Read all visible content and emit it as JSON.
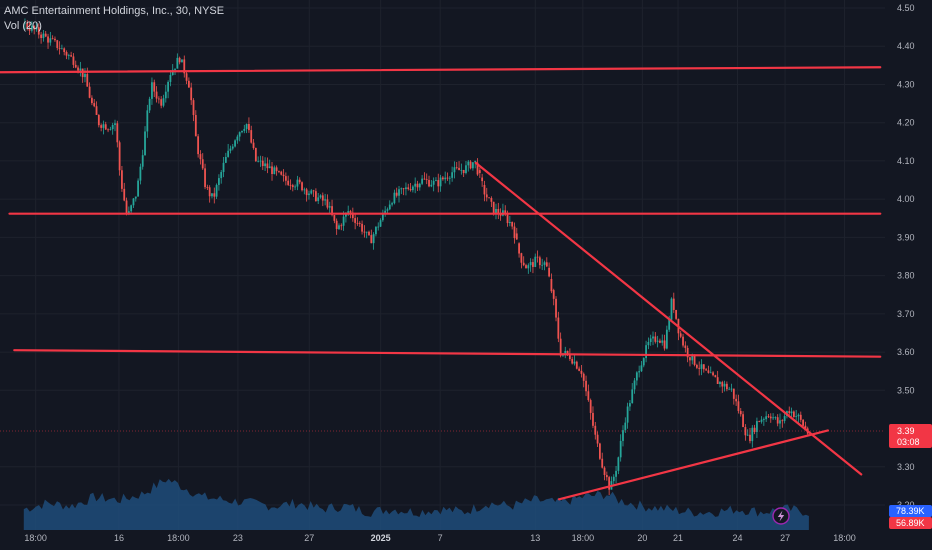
{
  "header": {
    "title": "AMC Entertainment Holdings, Inc., 30, NYSE",
    "volume_label": "Vol (20)"
  },
  "colors": {
    "background": "#131722",
    "up": "#26a69a",
    "down": "#ef5350",
    "trendline": "#f23645",
    "volume_area": "#1e4c7a",
    "price_label": "#f23645",
    "vol_label_up": "#2962ff",
    "vol_label_down": "#f23645"
  },
  "chart_data": {
    "type": "candlestick",
    "title": "AMC Entertainment Holdings, Inc., 30, NYSE",
    "ylim": [
      3.2,
      4.5
    ],
    "y_ticks": [
      "4.50",
      "4.40",
      "4.30",
      "4.20",
      "4.10",
      "4.00",
      "3.90",
      "3.80",
      "3.70",
      "3.60",
      "3.50",
      "3.30",
      "3.20"
    ],
    "x_ticks": [
      {
        "label": "18:00",
        "x": 0.5
      },
      {
        "label": "16",
        "x": 4
      },
      {
        "label": "18:00",
        "x": 6.5
      },
      {
        "label": "23",
        "x": 9
      },
      {
        "label": "27",
        "x": 12
      },
      {
        "label": "2025",
        "x": 15,
        "bold": true
      },
      {
        "label": "7",
        "x": 17.5
      },
      {
        "label": "13",
        "x": 21.5
      },
      {
        "label": "18:00",
        "x": 23.5
      },
      {
        "label": "20",
        "x": 26
      },
      {
        "label": "21",
        "x": 27.5
      },
      {
        "label": "24",
        "x": 30
      },
      {
        "label": "27",
        "x": 32
      },
      {
        "label": "18:00",
        "x": 34.5
      }
    ],
    "x_range": [
      -1,
      36.2
    ],
    "price_path": [
      [
        0,
        4.46
      ],
      [
        0.8,
        4.43
      ],
      [
        1.5,
        4.4
      ],
      [
        2.2,
        4.36
      ],
      [
        2.6,
        4.32
      ],
      [
        2.9,
        4.25
      ],
      [
        3.2,
        4.2
      ],
      [
        3.6,
        4.19
      ],
      [
        3.9,
        4.2
      ],
      [
        4.1,
        4.06
      ],
      [
        4.4,
        3.95
      ],
      [
        4.8,
        4.02
      ],
      [
        5.1,
        4.15
      ],
      [
        5.4,
        4.3
      ],
      [
        5.8,
        4.25
      ],
      [
        6.2,
        4.33
      ],
      [
        6.6,
        4.37
      ],
      [
        7.0,
        4.3
      ],
      [
        7.3,
        4.15
      ],
      [
        7.7,
        4.03
      ],
      [
        8.0,
        4.0
      ],
      [
        8.5,
        4.1
      ],
      [
        9.0,
        4.17
      ],
      [
        9.4,
        4.2
      ],
      [
        9.8,
        4.1
      ],
      [
        10.4,
        4.08
      ],
      [
        11.0,
        4.05
      ],
      [
        11.6,
        4.04
      ],
      [
        12.2,
        4.01
      ],
      [
        12.8,
        3.99
      ],
      [
        13.2,
        3.92
      ],
      [
        13.7,
        3.97
      ],
      [
        14.2,
        3.93
      ],
      [
        14.6,
        3.89
      ],
      [
        15.0,
        3.94
      ],
      [
        15.5,
        4.0
      ],
      [
        16.2,
        4.03
      ],
      [
        16.8,
        4.05
      ],
      [
        17.4,
        4.04
      ],
      [
        18.0,
        4.07
      ],
      [
        18.6,
        4.08
      ],
      [
        19.0,
        4.1
      ],
      [
        19.4,
        4.02
      ],
      [
        19.8,
        3.97
      ],
      [
        20.2,
        3.96
      ],
      [
        20.6,
        3.93
      ],
      [
        20.9,
        3.85
      ],
      [
        21.2,
        3.82
      ],
      [
        21.6,
        3.84
      ],
      [
        22.0,
        3.83
      ],
      [
        22.3,
        3.74
      ],
      [
        22.6,
        3.6
      ],
      [
        23.0,
        3.59
      ],
      [
        23.5,
        3.55
      ],
      [
        23.8,
        3.46
      ],
      [
        24.1,
        3.37
      ],
      [
        24.4,
        3.3
      ],
      [
        24.7,
        3.24
      ],
      [
        25.0,
        3.31
      ],
      [
        25.3,
        3.42
      ],
      [
        25.6,
        3.49
      ],
      [
        25.9,
        3.56
      ],
      [
        26.3,
        3.62
      ],
      [
        26.7,
        3.64
      ],
      [
        27.0,
        3.62
      ],
      [
        27.3,
        3.74
      ],
      [
        27.6,
        3.65
      ],
      [
        27.9,
        3.6
      ],
      [
        28.3,
        3.57
      ],
      [
        28.8,
        3.54
      ],
      [
        29.3,
        3.52
      ],
      [
        29.8,
        3.5
      ],
      [
        30.2,
        3.43
      ],
      [
        30.5,
        3.37
      ],
      [
        30.9,
        3.42
      ],
      [
        31.4,
        3.44
      ],
      [
        31.8,
        3.41
      ],
      [
        32.2,
        3.45
      ],
      [
        32.6,
        3.43
      ],
      [
        33.0,
        3.39
      ]
    ],
    "volume_path": [
      [
        0,
        0.35
      ],
      [
        1.0,
        0.45
      ],
      [
        2.0,
        0.4
      ],
      [
        3.0,
        0.55
      ],
      [
        4.0,
        0.5
      ],
      [
        5.0,
        0.6
      ],
      [
        6.0,
        0.85
      ],
      [
        6.8,
        0.7
      ],
      [
        7.5,
        0.55
      ],
      [
        8.5,
        0.5
      ],
      [
        9.5,
        0.45
      ],
      [
        10.5,
        0.4
      ],
      [
        11.5,
        0.45
      ],
      [
        12.5,
        0.35
      ],
      [
        13.5,
        0.4
      ],
      [
        14.5,
        0.3
      ],
      [
        15.5,
        0.35
      ],
      [
        16.5,
        0.3
      ],
      [
        17.5,
        0.35
      ],
      [
        18.5,
        0.3
      ],
      [
        19.5,
        0.45
      ],
      [
        20.5,
        0.4
      ],
      [
        21.5,
        0.5
      ],
      [
        22.5,
        0.45
      ],
      [
        23.5,
        0.55
      ],
      [
        24.5,
        0.6
      ],
      [
        25.0,
        0.5
      ],
      [
        26.0,
        0.4
      ],
      [
        27.0,
        0.35
      ],
      [
        28.0,
        0.3
      ],
      [
        29.0,
        0.3
      ],
      [
        30.0,
        0.35
      ],
      [
        31.0,
        0.3
      ],
      [
        32.0,
        0.35
      ],
      [
        33.0,
        0.3
      ]
    ],
    "trendlines": [
      {
        "x1": -1,
        "y1": 4.332,
        "x2": 36,
        "y2": 4.345
      },
      {
        "x1": -0.6,
        "y1": 3.962,
        "x2": 36,
        "y2": 3.962
      },
      {
        "x1": -0.4,
        "y1": 3.605,
        "x2": 36,
        "y2": 3.588
      },
      {
        "x1": 19.0,
        "y1": 4.095,
        "x2": 35.2,
        "y2": 3.28
      },
      {
        "x1": 22.5,
        "y1": 3.215,
        "x2": 33.8,
        "y2": 3.395
      }
    ],
    "current_price": "3.39",
    "countdown": "03:08",
    "volume_up_label": "78.39K",
    "volume_down_label": "56.89K"
  }
}
